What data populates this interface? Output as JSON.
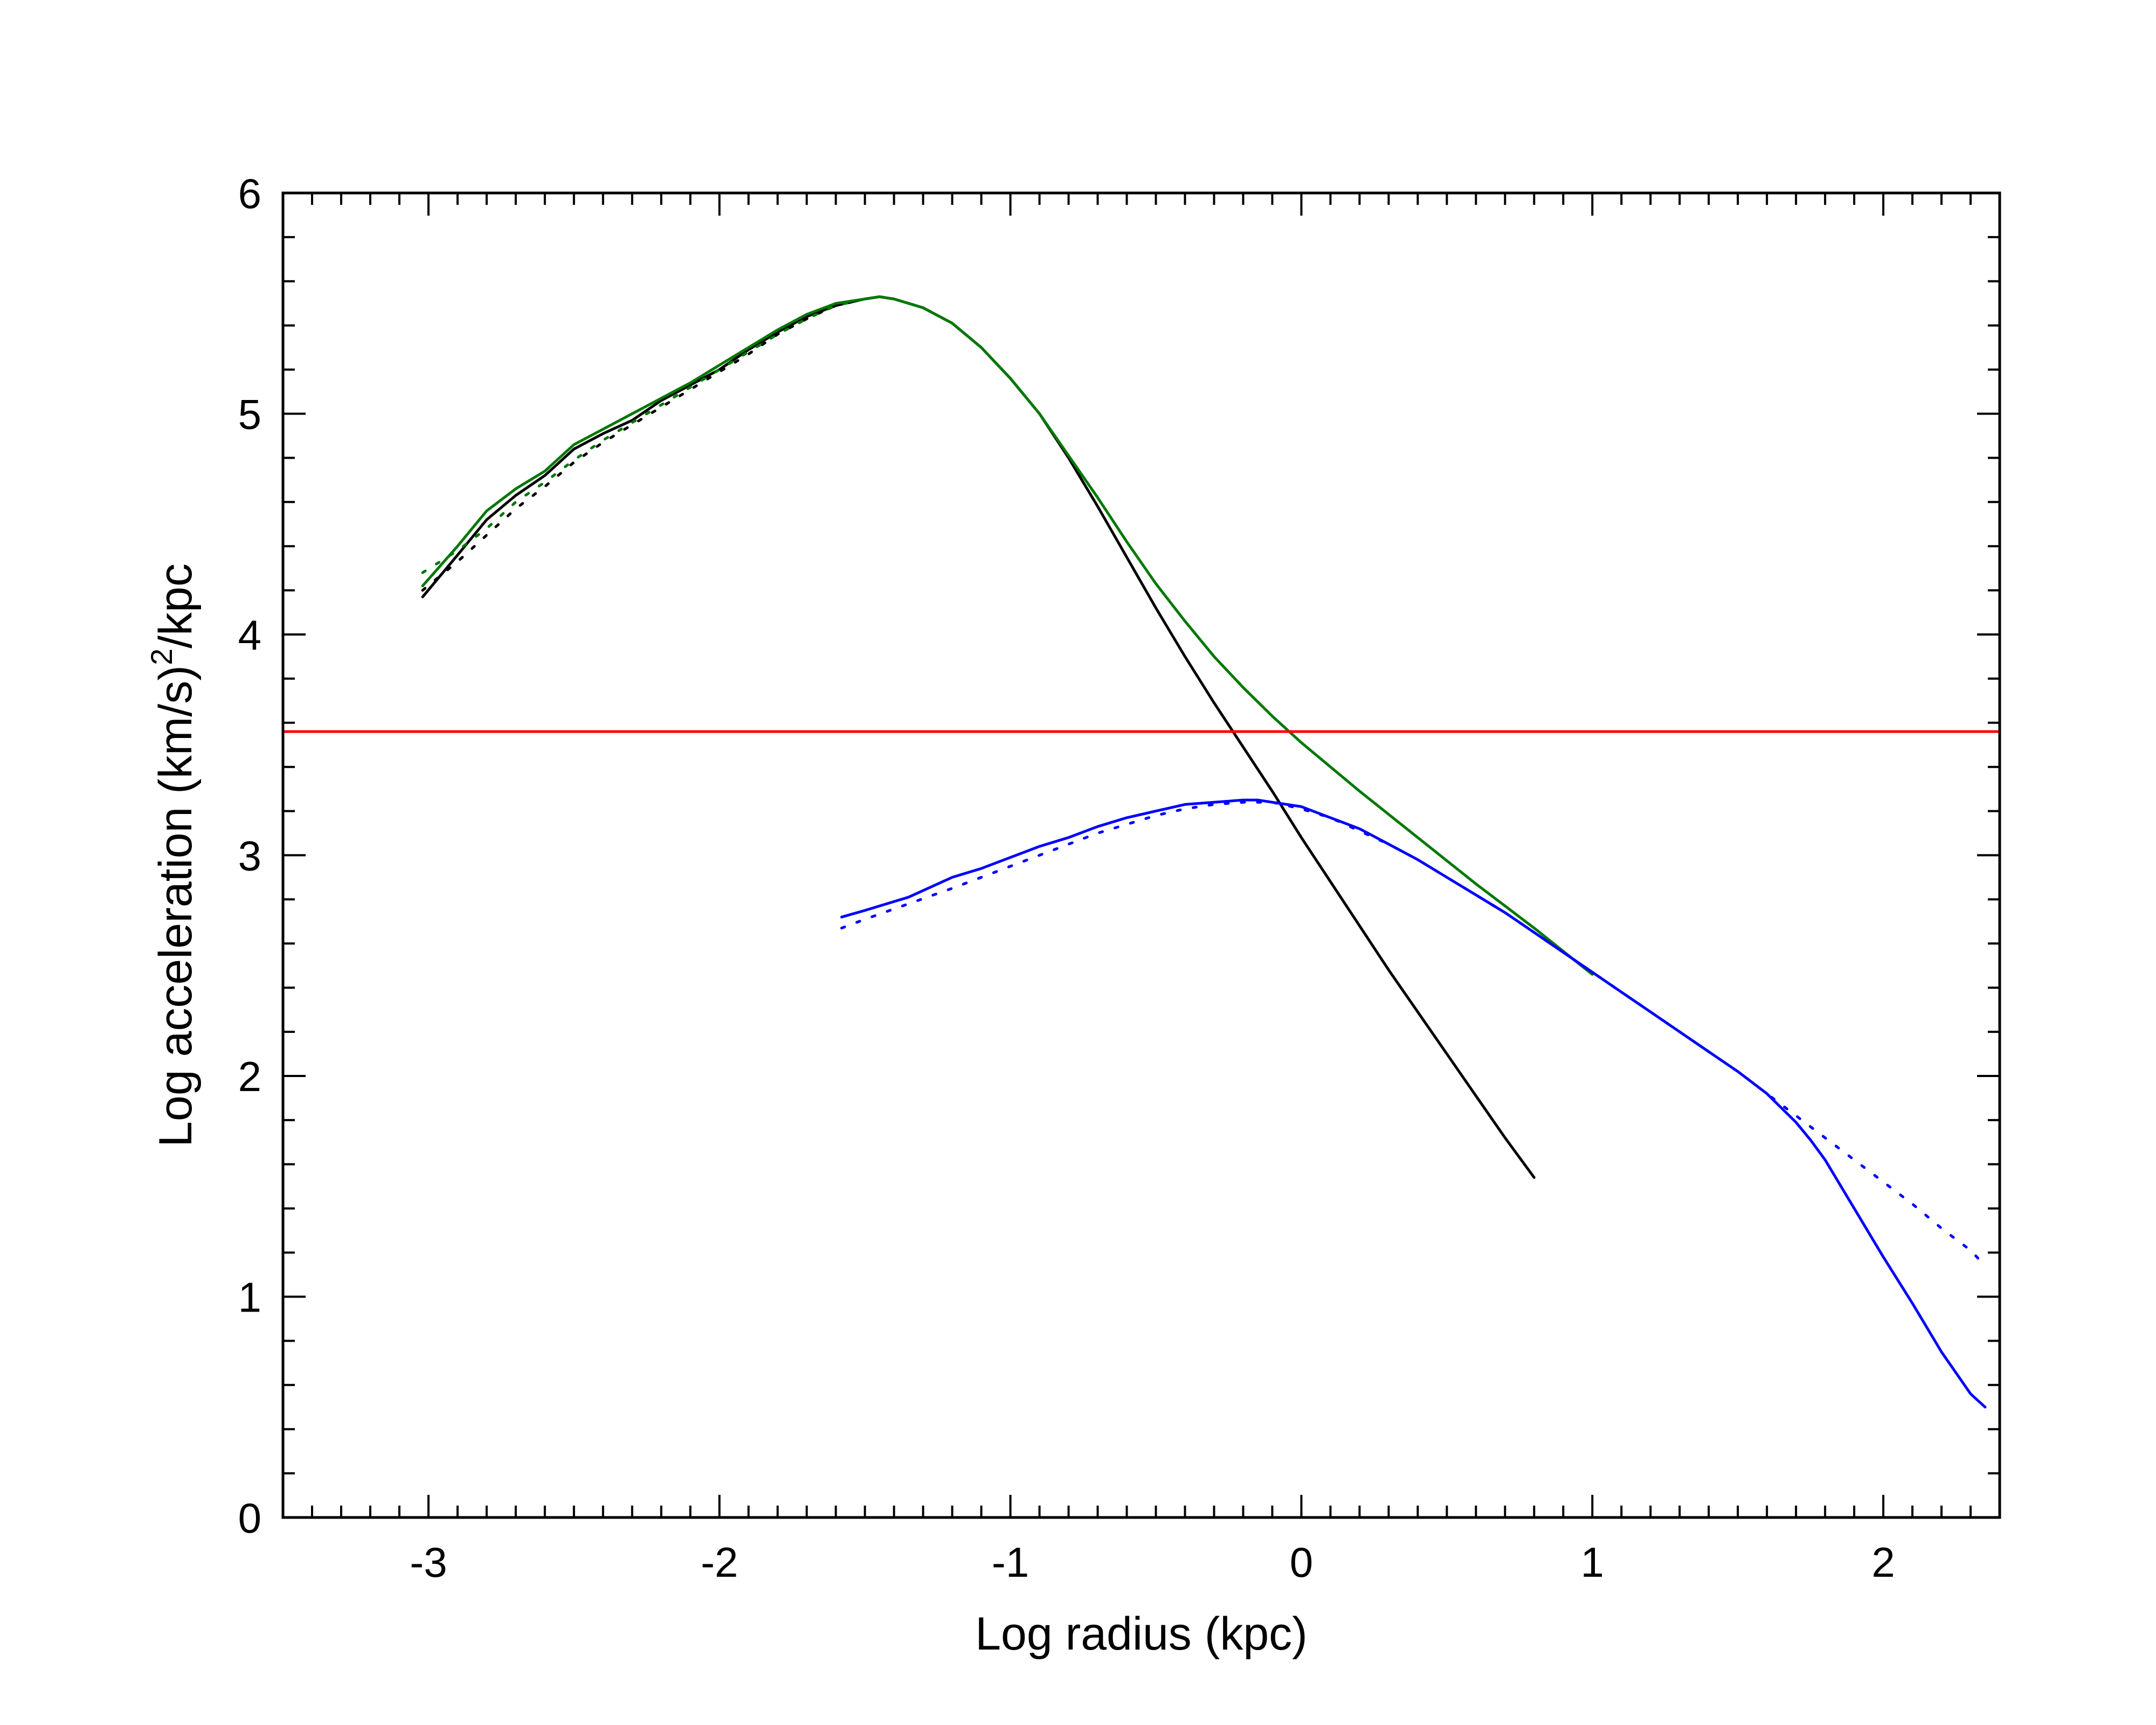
{
  "chart_data": {
    "type": "line",
    "xlabel": "Log radius (kpc)",
    "ylabel": {
      "main": "Log acceleration (km/s)",
      "superscript": "2",
      "suffix": "/kpc"
    },
    "xlim": [
      -3.5,
      2.4
    ],
    "ylim": [
      0,
      6
    ],
    "x_ticks": [
      -3,
      -2,
      -1,
      0,
      1,
      2
    ],
    "y_ticks": [
      0,
      1,
      2,
      3,
      4,
      5,
      6
    ],
    "x_minor_step": 0.1,
    "y_minor_step": 0.2,
    "grid": false,
    "legend": "none",
    "reference_line": {
      "y": 3.56,
      "color": "#ff0000"
    },
    "series": [
      {
        "color": "#000000",
        "style": "solid",
        "x": [
          -3.02,
          -2.9,
          -2.8,
          -2.7,
          -2.6,
          -2.5,
          -2.4,
          -2.3,
          -2.2,
          -2.1,
          -2.0,
          -1.9,
          -1.8,
          -1.7,
          -1.6,
          -1.5,
          -1.45,
          -1.4,
          -1.3,
          -1.2,
          -1.1,
          -1.0,
          -0.9,
          -0.8,
          -0.7,
          -0.6,
          -0.5,
          -0.4,
          -0.3,
          -0.2,
          -0.1,
          0.0,
          0.1,
          0.2,
          0.3,
          0.4,
          0.5,
          0.6,
          0.7,
          0.8
        ],
        "y": [
          4.17,
          4.36,
          4.52,
          4.63,
          4.72,
          4.84,
          4.91,
          4.97,
          5.06,
          5.13,
          5.2,
          5.29,
          5.37,
          5.44,
          5.49,
          5.52,
          5.53,
          5.52,
          5.48,
          5.41,
          5.3,
          5.16,
          5.0,
          4.8,
          4.58,
          4.35,
          4.12,
          3.9,
          3.69,
          3.49,
          3.29,
          3.08,
          2.88,
          2.68,
          2.48,
          2.29,
          2.1,
          1.91,
          1.72,
          1.54
        ]
      },
      {
        "color": "#000000",
        "style": "dotted",
        "x": [
          -3.02,
          -2.9,
          -2.8,
          -2.7,
          -2.6,
          -2.5,
          -2.4,
          -2.3,
          -2.2,
          -2.1,
          -2.0,
          -1.9,
          -1.8,
          -1.7,
          -1.6,
          -1.5,
          -1.45,
          -1.4,
          -1.3,
          -1.2
        ],
        "y": [
          4.2,
          4.33,
          4.45,
          4.57,
          4.67,
          4.78,
          4.87,
          4.95,
          5.03,
          5.11,
          5.19,
          5.27,
          5.36,
          5.43,
          5.49,
          5.52,
          5.53,
          5.52,
          5.48,
          5.41
        ]
      },
      {
        "color": "#007700",
        "style": "solid",
        "x": [
          -3.02,
          -2.9,
          -2.8,
          -2.7,
          -2.6,
          -2.5,
          -2.4,
          -2.3,
          -2.2,
          -2.1,
          -2.0,
          -1.9,
          -1.8,
          -1.7,
          -1.6,
          -1.5,
          -1.45,
          -1.4,
          -1.3,
          -1.2,
          -1.1,
          -1.0,
          -0.9,
          -0.8,
          -0.7,
          -0.6,
          -0.5,
          -0.4,
          -0.3,
          -0.2,
          -0.1,
          0.0,
          0.1,
          0.2,
          0.4,
          0.6,
          0.8,
          1.0
        ],
        "y": [
          4.22,
          4.4,
          4.56,
          4.66,
          4.74,
          4.86,
          4.93,
          5.0,
          5.07,
          5.14,
          5.22,
          5.3,
          5.38,
          5.45,
          5.5,
          5.52,
          5.53,
          5.52,
          5.48,
          5.41,
          5.3,
          5.16,
          5.0,
          4.81,
          4.62,
          4.42,
          4.23,
          4.06,
          3.9,
          3.76,
          3.63,
          3.51,
          3.4,
          3.29,
          3.08,
          2.87,
          2.67,
          2.46
        ]
      },
      {
        "color": "#007700",
        "style": "dotted",
        "x": [
          -3.02,
          -2.9,
          -2.8,
          -2.7,
          -2.6,
          -2.5,
          -2.4,
          -2.3,
          -2.2,
          -2.1,
          -2.0,
          -1.9,
          -1.8,
          -1.7,
          -1.6,
          -1.5,
          -1.45,
          -1.4,
          -1.3,
          -1.2
        ],
        "y": [
          4.28,
          4.38,
          4.48,
          4.6,
          4.69,
          4.79,
          4.88,
          4.96,
          5.04,
          5.12,
          5.2,
          5.28,
          5.36,
          5.43,
          5.49,
          5.52,
          5.53,
          5.52,
          5.48,
          5.41
        ]
      },
      {
        "color": "#0000ff",
        "style": "solid",
        "x": [
          -1.58,
          -1.5,
          -1.35,
          -1.2,
          -1.1,
          -1.0,
          -0.9,
          -0.8,
          -0.7,
          -0.6,
          -0.5,
          -0.4,
          -0.3,
          -0.2,
          -0.15,
          -0.1,
          0.0,
          0.1,
          0.2,
          0.3,
          0.4,
          0.5,
          0.6,
          0.7,
          0.8,
          0.9,
          1.0,
          1.1,
          1.2,
          1.3,
          1.4,
          1.5,
          1.6,
          1.7,
          1.75,
          1.8,
          1.9,
          2.0,
          2.1,
          2.2,
          2.3,
          2.35
        ],
        "y": [
          2.72,
          2.75,
          2.81,
          2.9,
          2.94,
          2.99,
          3.04,
          3.08,
          3.13,
          3.17,
          3.2,
          3.23,
          3.24,
          3.25,
          3.25,
          3.24,
          3.22,
          3.17,
          3.12,
          3.05,
          2.98,
          2.9,
          2.82,
          2.74,
          2.65,
          2.56,
          2.47,
          2.38,
          2.29,
          2.2,
          2.11,
          2.02,
          1.92,
          1.79,
          1.71,
          1.62,
          1.4,
          1.18,
          0.97,
          0.75,
          0.56,
          0.5
        ]
      },
      {
        "color": "#0000ff",
        "style": "dotted",
        "x": [
          -1.58,
          -1.5,
          -1.35,
          -1.2,
          -1.1,
          -1.0,
          -0.9,
          -0.8,
          -0.7,
          -0.6,
          -0.5,
          -0.4,
          -0.3,
          -0.2,
          -0.15,
          -0.1,
          0.0,
          0.1,
          0.2,
          0.3,
          0.4,
          0.5,
          0.6,
          0.7,
          0.8,
          0.9,
          1.0,
          1.1,
          1.2,
          1.3,
          1.4,
          1.5,
          1.6,
          1.7,
          1.8,
          1.9,
          2.0,
          2.1,
          2.2,
          2.3,
          2.35
        ],
        "y": [
          2.67,
          2.71,
          2.78,
          2.85,
          2.9,
          2.95,
          3.0,
          3.05,
          3.1,
          3.14,
          3.18,
          3.21,
          3.23,
          3.24,
          3.24,
          3.24,
          3.21,
          3.17,
          3.11,
          3.05,
          2.98,
          2.9,
          2.82,
          2.74,
          2.65,
          2.56,
          2.47,
          2.38,
          2.29,
          2.2,
          2.11,
          2.02,
          1.92,
          1.82,
          1.72,
          1.62,
          1.52,
          1.42,
          1.31,
          1.21,
          1.14
        ]
      }
    ]
  }
}
